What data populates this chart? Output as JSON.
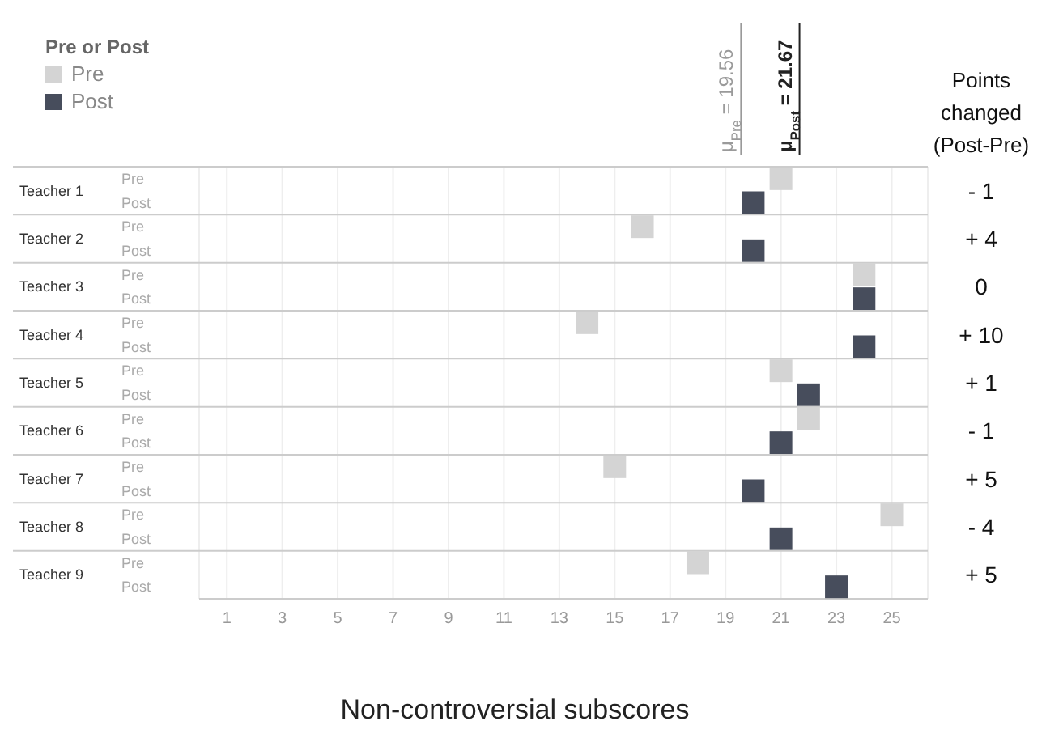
{
  "chart_data": {
    "type": "scatter",
    "orientation": "horizontal",
    "xlabel": "Non-controversial subscores",
    "legend_title": "Pre or Post",
    "legend": "top left",
    "grid": "x",
    "marker": "square",
    "categories": [
      "Teacher 1",
      "Teacher 2",
      "Teacher 3",
      "Teacher 4",
      "Teacher 5",
      "Teacher 6",
      "Teacher 7",
      "Teacher 8",
      "Teacher 9"
    ],
    "series": [
      {
        "name": "Pre",
        "color": "#d4d4d4",
        "values": [
          21,
          16,
          24,
          14,
          21,
          22,
          15,
          25,
          18
        ]
      },
      {
        "name": "Post",
        "color": "#474d5c",
        "values": [
          20,
          20,
          24,
          24,
          22,
          21,
          20,
          21,
          23
        ]
      }
    ],
    "xlim": [
      0,
      26.3
    ],
    "xticks": [
      1,
      3,
      5,
      7,
      9,
      11,
      13,
      15,
      17,
      19,
      21,
      23,
      25
    ],
    "ref_lines": [
      {
        "axis": "x",
        "value": 19.56,
        "label": "μ$_{Pre}$ = 19.56",
        "color": "#9a9a9a"
      },
      {
        "axis": "x",
        "value": 21.67,
        "label": "μ$_{Post}$ = 21.67",
        "color": "#222222"
      }
    ],
    "annotations": [
      "Points changed\n(Post-Pre)",
      "- 1",
      "+ 4",
      "0",
      "+ 10",
      "+ 1",
      "- 1",
      "+ 5",
      "- 4",
      "+ 5"
    ]
  }
}
